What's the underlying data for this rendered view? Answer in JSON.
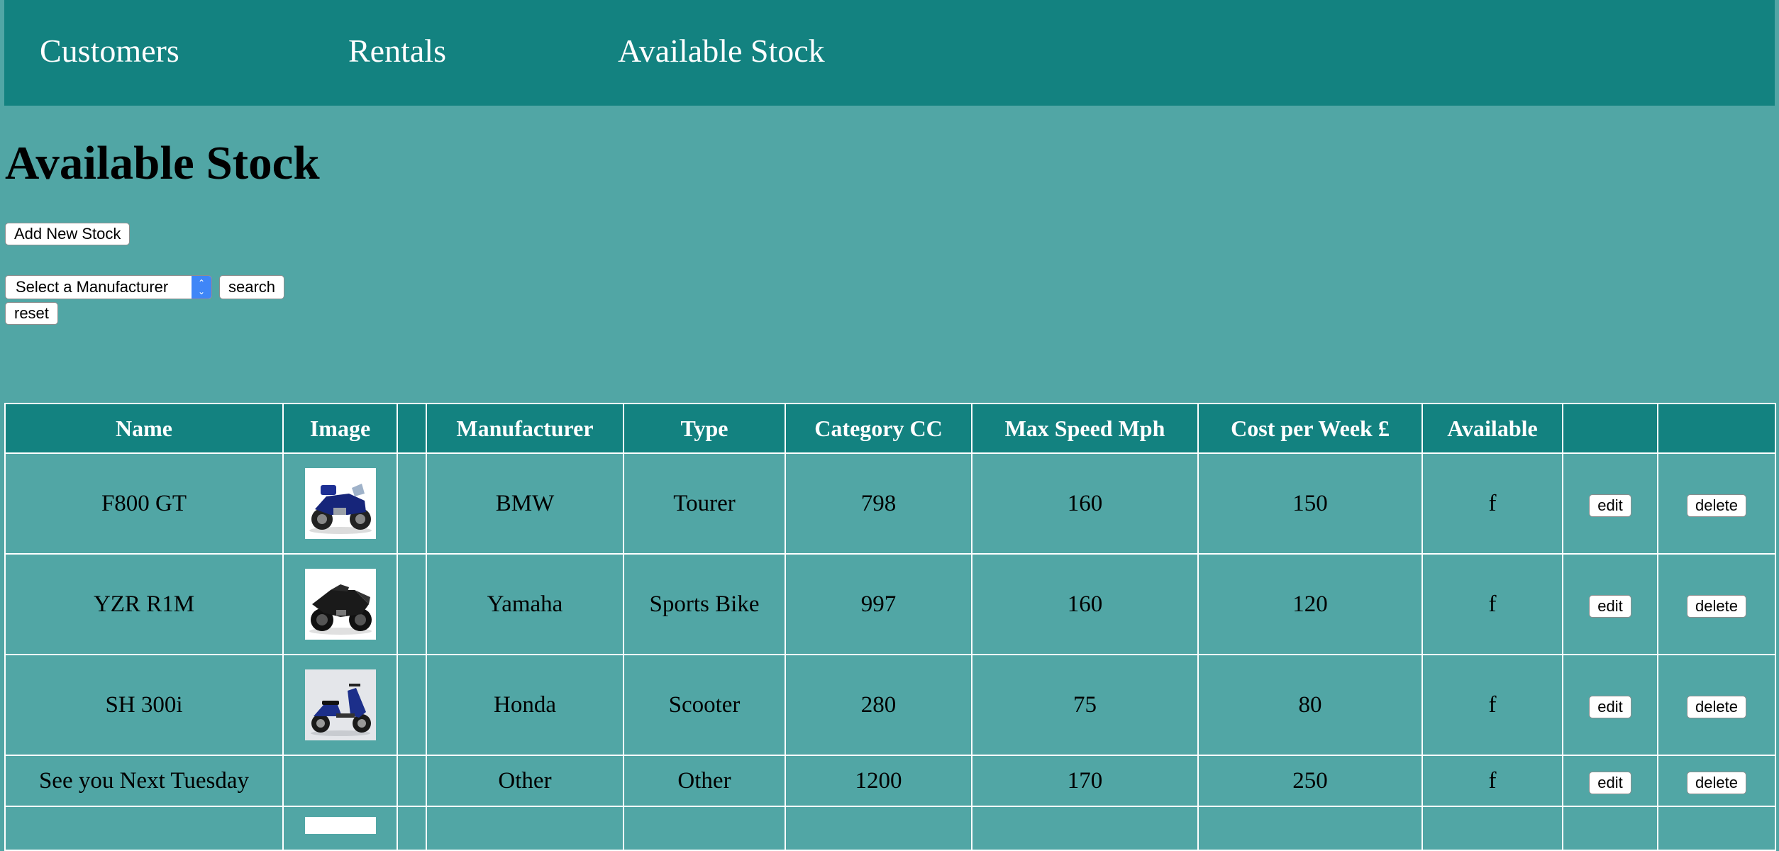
{
  "nav": {
    "customers": "Customers",
    "rentals": "Rentals",
    "available_stock": "Available Stock"
  },
  "page": {
    "title": "Available Stock",
    "add_button": "Add New Stock"
  },
  "filter": {
    "select_value": "Select a Manufacturer",
    "search_button": "search",
    "reset_button": "reset"
  },
  "table": {
    "headers": {
      "name": "Name",
      "image": "Image",
      "blank": "",
      "manufacturer": "Manufacturer",
      "type": "Type",
      "category_cc": "Category CC",
      "max_speed": "Max Speed Mph",
      "cost": "Cost per Week £",
      "available": "Available",
      "edit_col": "",
      "delete_col": ""
    },
    "edit_label": "edit",
    "delete_label": "delete",
    "rows": [
      {
        "name": "F800 GT",
        "image": "blue-touring-motorbike",
        "manufacturer": "BMW",
        "type": "Tourer",
        "cc": "798",
        "speed": "160",
        "cost": "150",
        "available": "f"
      },
      {
        "name": "YZR R1M",
        "image": "black-sports-motorbike",
        "manufacturer": "Yamaha",
        "type": "Sports Bike",
        "cc": "997",
        "speed": "160",
        "cost": "120",
        "available": "f"
      },
      {
        "name": "SH 300i",
        "image": "blue-scooter",
        "manufacturer": "Honda",
        "type": "Scooter",
        "cc": "280",
        "speed": "75",
        "cost": "80",
        "available": "f"
      },
      {
        "name": "See you Next Tuesday",
        "image": "",
        "manufacturer": "Other",
        "type": "Other",
        "cc": "1200",
        "speed": "170",
        "cost": "250",
        "available": "f"
      }
    ]
  },
  "colors": {
    "background": "#51a6a5",
    "nav_background": "#138280",
    "header_background": "#138280",
    "border": "#ffffff"
  }
}
